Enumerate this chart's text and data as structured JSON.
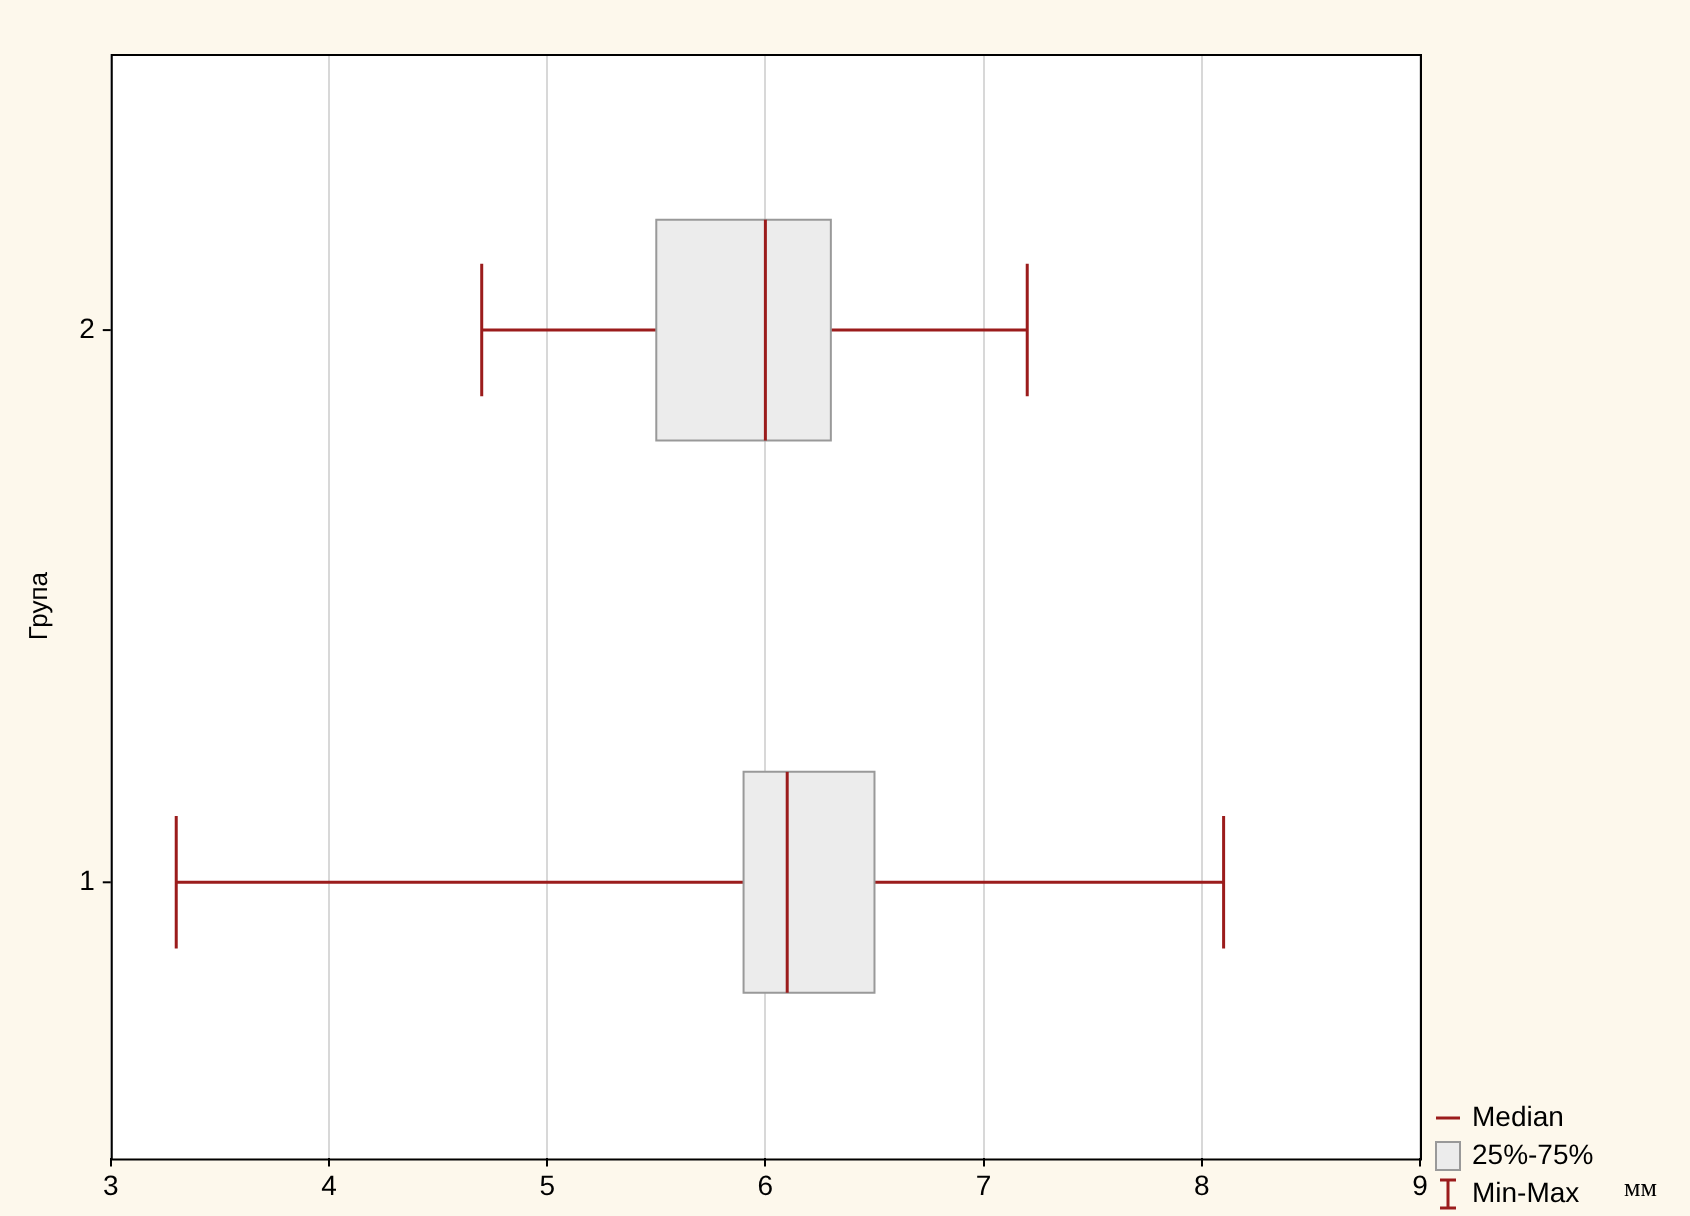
{
  "chart_data": {
    "type": "box",
    "orientation": "horizontal",
    "ylabel": "Група",
    "categories": [
      "2",
      "1"
    ],
    "series": [
      {
        "color": "#9b1c1c",
        "colors": [
          "#ececec",
          "#ececec"
        ],
        "boxes": [
          {
            "low": 4.7,
            "q1": 5.5,
            "median": 6.0,
            "q3": 6.3,
            "high": 7.2
          },
          {
            "low": 3.3,
            "q1": 5.9,
            "median": 6.1,
            "q3": 6.5,
            "high": 8.1
          }
        ]
      }
    ],
    "xlim": [
      3,
      9
    ],
    "xticks": [
      3,
      4,
      5,
      6,
      7,
      8,
      9
    ],
    "grid": "x",
    "annotations": [
      "Median",
      "25%-75%",
      "Min-Max",
      "мм"
    ]
  }
}
